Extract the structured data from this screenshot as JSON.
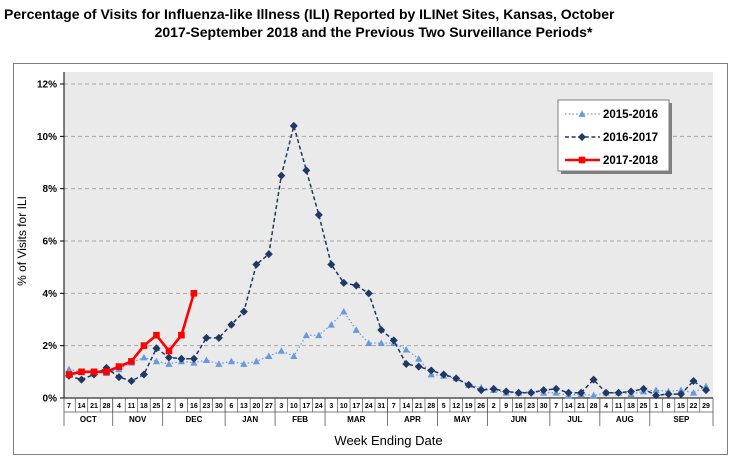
{
  "title": {
    "line1": "Percentage of Visits for Influenza-like Illness (ILI) Reported by ILINet Sites, Kansas, October",
    "line2": "2017-September 2018 and the Previous Two Surveillance Periods*"
  },
  "y_axis": {
    "label": "% of Visits for ILI",
    "ticks": [
      {
        "v": 0,
        "label": "0%"
      },
      {
        "v": 2,
        "label": "2%"
      },
      {
        "v": 4,
        "label": "4%"
      },
      {
        "v": 6,
        "label": "6%"
      },
      {
        "v": 8,
        "label": "8%"
      },
      {
        "v": 10,
        "label": "10%"
      },
      {
        "v": 12,
        "label": "12%"
      }
    ]
  },
  "x_axis": {
    "label": "Week Ending Date",
    "week_labels": [
      "7",
      "14",
      "21",
      "28",
      "4",
      "11",
      "18",
      "25",
      "2",
      "9",
      "16",
      "23",
      "30",
      "6",
      "13",
      "20",
      "27",
      "3",
      "10",
      "17",
      "24",
      "3",
      "10",
      "17",
      "24",
      "31",
      "7",
      "14",
      "21",
      "28",
      "5",
      "12",
      "19",
      "26",
      "2",
      "9",
      "16",
      "23",
      "30",
      "7",
      "14",
      "21",
      "28",
      "4",
      "11",
      "18",
      "25",
      "1",
      "8",
      "15",
      "22",
      "29"
    ],
    "months": [
      {
        "label": "OCT",
        "weeks": 4
      },
      {
        "label": "NOV",
        "weeks": 4
      },
      {
        "label": "DEC",
        "weeks": 5
      },
      {
        "label": "JAN",
        "weeks": 4
      },
      {
        "label": "FEB",
        "weeks": 4
      },
      {
        "label": "MAR",
        "weeks": 5
      },
      {
        "label": "APR",
        "weeks": 4
      },
      {
        "label": "MAY",
        "weeks": 4
      },
      {
        "label": "JUN",
        "weeks": 5
      },
      {
        "label": "JUL",
        "weeks": 4
      },
      {
        "label": "AUG",
        "weeks": 4
      },
      {
        "label": "SEP",
        "weeks": 5
      }
    ]
  },
  "legend": {
    "items": [
      {
        "label": "2015-2016"
      },
      {
        "label": "2016-2017"
      },
      {
        "label": "2017-2018"
      }
    ]
  },
  "colors": {
    "series_2015_2016": "#6699DD",
    "series_2016_2017": "#1F3864",
    "series_2017_2018": "#FF0000",
    "plot_background": "#EAEAEA",
    "gridline": "#A6A6A6",
    "panel_border": "#7F7F7F"
  },
  "chart_data": {
    "type": "line",
    "title": "Percentage of Visits for Influenza-like Illness (ILI) Reported by ILINet Sites, Kansas, October 2017-September 2018 and the Previous Two Surveillance Periods*",
    "xlabel": "Week Ending Date",
    "ylabel": "% of Visits for ILI",
    "ylim": [
      0,
      12
    ],
    "y_tick_step": 2,
    "y_tick_format": "percent",
    "grid": "horizontal-dashed",
    "legend_position": "upper-right-inside",
    "categories": [
      "Oct 7",
      "Oct 14",
      "Oct 21",
      "Oct 28",
      "Nov 4",
      "Nov 11",
      "Nov 18",
      "Nov 25",
      "Dec 2",
      "Dec 9",
      "Dec 16",
      "Dec 23",
      "Dec 30",
      "Jan 6",
      "Jan 13",
      "Jan 20",
      "Jan 27",
      "Feb 3",
      "Feb 10",
      "Feb 17",
      "Feb 24",
      "Mar 3",
      "Mar 10",
      "Mar 17",
      "Mar 24",
      "Mar 31",
      "Apr 7",
      "Apr 14",
      "Apr 21",
      "Apr 28",
      "May 5",
      "May 12",
      "May 19",
      "May 26",
      "Jun 2",
      "Jun 9",
      "Jun 16",
      "Jun 23",
      "Jun 30",
      "Jul 7",
      "Jul 14",
      "Jul 21",
      "Jul 28",
      "Aug 4",
      "Aug 11",
      "Aug 18",
      "Aug 25",
      "Sep 1",
      "Sep 8",
      "Sep 15",
      "Sep 22",
      "Sep 29"
    ],
    "series": [
      {
        "name": "2015-2016",
        "color": "#6699DD",
        "line_style": "dotted",
        "marker": "triangle",
        "width": 1.2,
        "values": [
          1.1,
          1.0,
          1.0,
          0.95,
          1.1,
          1.35,
          1.55,
          1.4,
          1.3,
          1.4,
          1.35,
          1.45,
          1.3,
          1.4,
          1.3,
          1.4,
          1.6,
          1.8,
          1.6,
          2.4,
          2.4,
          2.8,
          3.3,
          2.6,
          2.1,
          2.1,
          2.1,
          1.85,
          1.5,
          0.9,
          0.85,
          0.75,
          0.5,
          0.4,
          0.3,
          0.2,
          0.2,
          0.25,
          0.2,
          0.2,
          0.1,
          0.15,
          0.1,
          0.2,
          0.2,
          0.15,
          0.25,
          0.3,
          0.25,
          0.3,
          0.2,
          0.45
        ]
      },
      {
        "name": "2016-2017",
        "color": "#1F3864",
        "line_style": "dashed",
        "marker": "diamond",
        "width": 1.5,
        "values": [
          0.85,
          0.7,
          0.9,
          1.15,
          0.8,
          0.65,
          0.9,
          1.9,
          1.55,
          1.5,
          1.5,
          2.3,
          2.3,
          2.8,
          3.3,
          5.1,
          5.5,
          8.5,
          10.4,
          8.7,
          7.0,
          5.1,
          4.4,
          4.3,
          4.0,
          2.6,
          2.2,
          1.3,
          1.2,
          1.05,
          0.9,
          0.75,
          0.5,
          0.3,
          0.35,
          0.25,
          0.2,
          0.2,
          0.3,
          0.35,
          0.2,
          0.2,
          0.7,
          0.2,
          0.2,
          0.25,
          0.35,
          0.1,
          0.15,
          0.15,
          0.65,
          0.3
        ]
      },
      {
        "name": "2017-2018",
        "color": "#FF0000",
        "line_style": "solid",
        "marker": "square",
        "width": 2.6,
        "values": [
          0.9,
          1.0,
          1.0,
          1.0,
          1.2,
          1.4,
          2.0,
          2.4,
          1.8,
          2.4,
          4.0,
          null,
          null,
          null,
          null,
          null,
          null,
          null,
          null,
          null,
          null,
          null,
          null,
          null,
          null,
          null,
          null,
          null,
          null,
          null,
          null,
          null,
          null,
          null,
          null,
          null,
          null,
          null,
          null,
          null,
          null,
          null,
          null,
          null,
          null,
          null,
          null,
          null,
          null,
          null,
          null,
          null
        ]
      }
    ]
  }
}
